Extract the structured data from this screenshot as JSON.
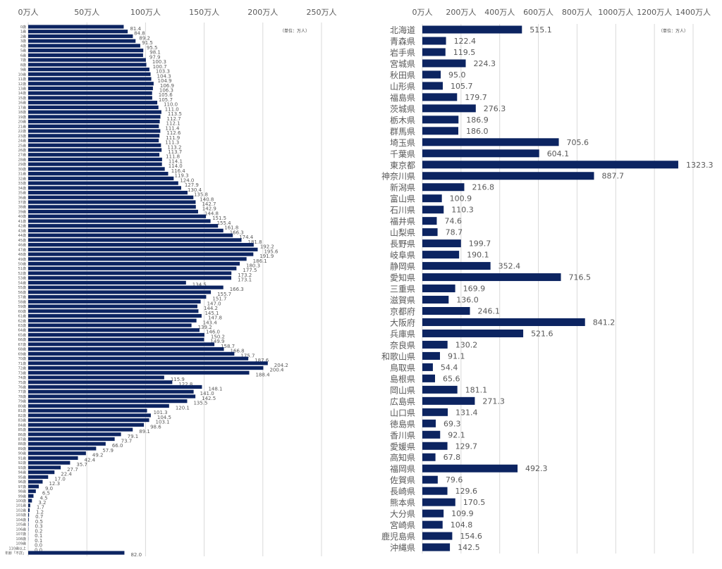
{
  "chart_data": [
    {
      "type": "bar",
      "orientation": "horizontal",
      "title": "",
      "unit_note": "（単位：万人）",
      "xlabel": "",
      "ylabel": "",
      "xlim": [
        0,
        250
      ],
      "x_ticks": [
        "0万人",
        "50万人",
        "100万人",
        "150万人",
        "200万人",
        "250万人"
      ],
      "x_tick_values": [
        0,
        50,
        100,
        150,
        200,
        250
      ],
      "grid": true,
      "bar_color": "#0c2461",
      "categories": [
        "0歳",
        "1歳",
        "2歳",
        "3歳",
        "4歳",
        "5歳",
        "6歳",
        "7歳",
        "8歳",
        "9歳",
        "10歳",
        "11歳",
        "12歳",
        "13歳",
        "14歳",
        "15歳",
        "16歳",
        "17歳",
        "18歳",
        "19歳",
        "20歳",
        "21歳",
        "22歳",
        "23歳",
        "24歳",
        "25歳",
        "26歳",
        "27歳",
        "28歳",
        "29歳",
        "30歳",
        "31歳",
        "32歳",
        "33歳",
        "34歳",
        "35歳",
        "36歳",
        "37歳",
        "38歳",
        "39歳",
        "40歳",
        "41歳",
        "42歳",
        "43歳",
        "44歳",
        "45歳",
        "46歳",
        "47歳",
        "48歳",
        "49歳",
        "50歳",
        "51歳",
        "52歳",
        "53歳",
        "54歳",
        "55歳",
        "56歳",
        "57歳",
        "58歳",
        "59歳",
        "60歳",
        "61歳",
        "62歳",
        "63歳",
        "64歳",
        "65歳",
        "66歳",
        "67歳",
        "68歳",
        "69歳",
        "70歳",
        "71歳",
        "72歳",
        "73歳",
        "74歳",
        "75歳",
        "76歳",
        "77歳",
        "78歳",
        "79歳",
        "80歳",
        "81歳",
        "82歳",
        "83歳",
        "84歳",
        "85歳",
        "86歳",
        "87歳",
        "88歳",
        "89歳",
        "90歳",
        "91歳",
        "92歳",
        "93歳",
        "94歳",
        "95歳",
        "96歳",
        "97歳",
        "98歳",
        "99歳",
        "100歳",
        "101歳",
        "102歳",
        "103歳",
        "104歳",
        "105歳",
        "106歳",
        "107歳",
        "108歳",
        "109歳",
        "110歳以上",
        "年齢「不詳」"
      ],
      "values": [
        81.4,
        84.8,
        89.2,
        91.5,
        95.5,
        98.1,
        97.9,
        100.3,
        100.7,
        103.3,
        104.3,
        104.9,
        106.9,
        106.3,
        105.6,
        105.7,
        110.0,
        111.0,
        113.5,
        112.7,
        112.1,
        111.4,
        112.6,
        111.9,
        111.3,
        113.2,
        113.7,
        111.8,
        114.1,
        114.0,
        116.4,
        119.3,
        124.0,
        127.9,
        130.4,
        135.8,
        140.8,
        142.7,
        142.9,
        144.8,
        151.5,
        155.4,
        161.8,
        166.3,
        174.4,
        181.8,
        192.2,
        195.6,
        191.9,
        186.1,
        180.3,
        177.5,
        173.2,
        173.1,
        134.5,
        166.3,
        155.7,
        151.7,
        147.0,
        144.2,
        145.1,
        147.8,
        143.4,
        139.2,
        146.0,
        150.2,
        149.9,
        158.7,
        166.8,
        175.7,
        187.6,
        204.2,
        200.4,
        188.4,
        115.9,
        122.8,
        148.1,
        141.0,
        142.5,
        135.5,
        120.1,
        101.3,
        104.5,
        103.1,
        98.6,
        89.1,
        79.1,
        73.7,
        66.0,
        57.9,
        49.2,
        42.4,
        35.7,
        27.7,
        22.4,
        17.0,
        12.3,
        9.0,
        6.5,
        4.5,
        3.2,
        1.7,
        1.2,
        0.7,
        0.5,
        0.3,
        0.2,
        0.1,
        0.1,
        0.0,
        0.0,
        82.0
      ]
    },
    {
      "type": "bar",
      "orientation": "horizontal",
      "title": "",
      "unit_note": "（単位：万人）",
      "xlabel": "",
      "ylabel": "",
      "xlim": [
        0,
        1400
      ],
      "x_ticks": [
        "0万人",
        "200万人",
        "400万人",
        "600万人",
        "800万人",
        "1000万人",
        "1200万人",
        "1400万人"
      ],
      "x_tick_values": [
        0,
        200,
        400,
        600,
        800,
        1000,
        1200,
        1400
      ],
      "grid": true,
      "bar_color": "#0c2461",
      "categories": [
        "北海道",
        "青森県",
        "岩手県",
        "宮城県",
        "秋田県",
        "山形県",
        "福島県",
        "茨城県",
        "栃木県",
        "群馬県",
        "埼玉県",
        "千葉県",
        "東京都",
        "神奈川県",
        "新潟県",
        "富山県",
        "石川県",
        "福井県",
        "山梨県",
        "長野県",
        "岐阜県",
        "静岡県",
        "愛知県",
        "三重県",
        "滋賀県",
        "京都府",
        "大阪府",
        "兵庫県",
        "奈良県",
        "和歌山県",
        "鳥取県",
        "島根県",
        "岡山県",
        "広島県",
        "山口県",
        "徳島県",
        "香川県",
        "愛媛県",
        "高知県",
        "福岡県",
        "佐賀県",
        "長崎県",
        "熊本県",
        "大分県",
        "宮崎県",
        "鹿児島県",
        "沖縄県"
      ],
      "values": [
        515.1,
        122.4,
        119.5,
        224.3,
        95.0,
        105.7,
        179.7,
        276.3,
        186.9,
        186.0,
        705.6,
        604.1,
        1323.3,
        887.7,
        216.8,
        100.9,
        110.3,
        74.6,
        78.7,
        199.7,
        190.1,
        352.4,
        716.5,
        169.9,
        136.0,
        246.1,
        841.2,
        521.6,
        130.2,
        91.1,
        54.4,
        65.6,
        181.1,
        271.3,
        131.4,
        69.3,
        92.1,
        129.7,
        67.8,
        492.3,
        79.6,
        129.6,
        170.5,
        109.9,
        104.8,
        154.6,
        142.5
      ]
    }
  ]
}
